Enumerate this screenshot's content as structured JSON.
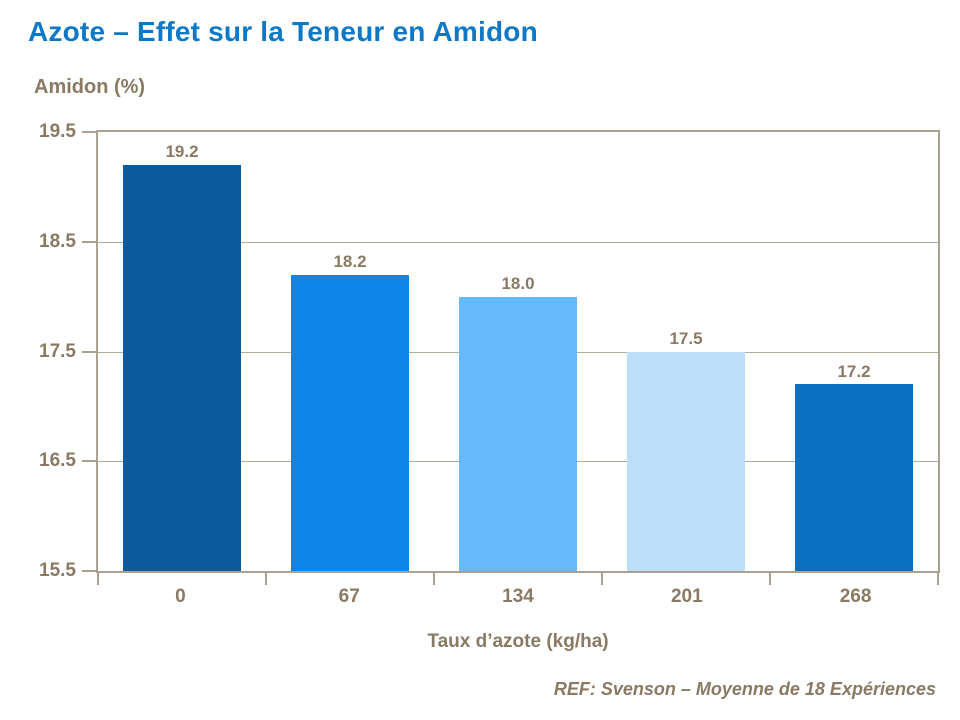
{
  "chart_data": {
    "type": "bar",
    "title": "Azote – Effet sur la Teneur en Amidon",
    "ylabel": "Amidon (%)",
    "xlabel": "Taux d’azote (kg/ha)",
    "categories": [
      "0",
      "67",
      "134",
      "201",
      "268"
    ],
    "values": [
      19.2,
      18.2,
      18.0,
      17.5,
      17.2
    ],
    "value_labels": [
      "19.2",
      "18.2",
      "18.0",
      "17.5",
      "17.2"
    ],
    "ylim": [
      15.5,
      19.5
    ],
    "yticks": [
      "19.5",
      "18.5",
      "17.5",
      "16.5",
      "15.5"
    ],
    "grid": true,
    "legend": false,
    "bar_colors": [
      "#0b5a9e",
      "#0b86e8",
      "#66b9fb",
      "#bcdefb",
      "#0b70c0"
    ],
    "annotation": "REF: Svenson – Moyenne de 18 Expériences"
  },
  "colors": {
    "title": "#0d79c6",
    "text": "#8a7a64",
    "axis_border": "#aaa193",
    "gridline": "#b3aa9b",
    "background": "#ffffff"
  }
}
